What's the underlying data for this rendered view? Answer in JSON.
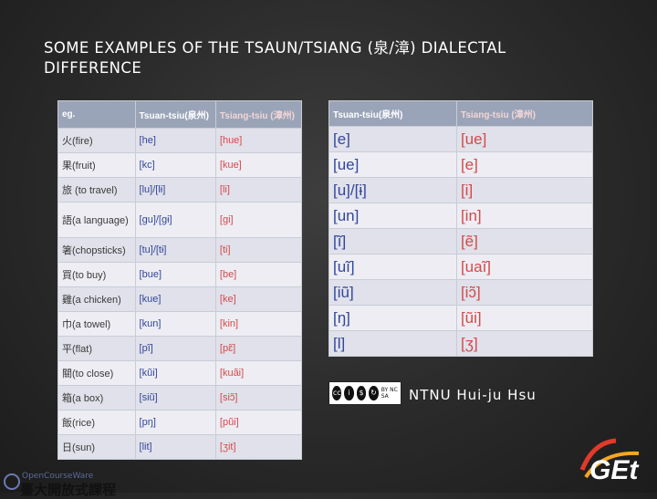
{
  "title": "SOME EXAMPLES OF THE TSAUN/TSIANG (泉/漳) DIALECTAL DIFFERENCE",
  "table1": {
    "headers": [
      "eg.",
      "Tsuan-tsiu(泉州)",
      "Tsiang-tsiu (漳州)"
    ],
    "rows": [
      [
        "火(fire)",
        "[he]",
        "[hue]"
      ],
      [
        "果(fruit)",
        "[kc]",
        "[kue]"
      ],
      [
        "旅 (to travel)",
        "[lu]/[lɨ]",
        "[li]"
      ],
      [
        "語(a language)",
        "[gu]/[gɨ]",
        "[gi]"
      ],
      [
        "箸(chopsticks)",
        "[tu]/[tɨ]",
        "[ti]"
      ],
      [
        "買(to buy)",
        "[bue]",
        "[be]"
      ],
      [
        "雞(a chicken)",
        "[kue]",
        "[ke]"
      ],
      [
        "巾(a towel)",
        "[kun]",
        "[kin]"
      ],
      [
        "平(flat)",
        "[pĩ]",
        "[pɛ̃]"
      ],
      [
        "關(to close)",
        "[kũi]",
        "[kuãi]"
      ],
      [
        "箱(a box)",
        "[siũ]",
        "[siɔ̃]"
      ],
      [
        "飯(rice)",
        "[pŋ]",
        "[pũi]"
      ],
      [
        "日(sun)",
        "[lit]",
        "[ʒit]"
      ]
    ]
  },
  "table2": {
    "headers": [
      "Tsuan-tsiu(泉州)",
      "Tsiang-tsiu (漳州)"
    ],
    "rows": [
      [
        "[e]",
        "[ue]"
      ],
      [
        "[ue]",
        "[e]"
      ],
      [
        "[u]/[ɨ]",
        "[i]"
      ],
      [
        "[un]",
        "[in]"
      ],
      [
        "[ĩ]",
        "[ẽ]"
      ],
      [
        "[uĩ]",
        "[uaĩ]"
      ],
      [
        "[iũ]",
        "[iɔ̃]"
      ],
      [
        "[ŋ]",
        "[ũi]"
      ],
      [
        "[l]",
        "[ʒ]"
      ]
    ]
  },
  "license": {
    "cc": "cc",
    "labels": "BY NC SA"
  },
  "credit": "NTNU Hui-ju Hsu",
  "ocw": {
    "small": "OpenCourseWare",
    "big": "臺大開放式課程"
  },
  "logo": {
    "text": "GEt"
  }
}
